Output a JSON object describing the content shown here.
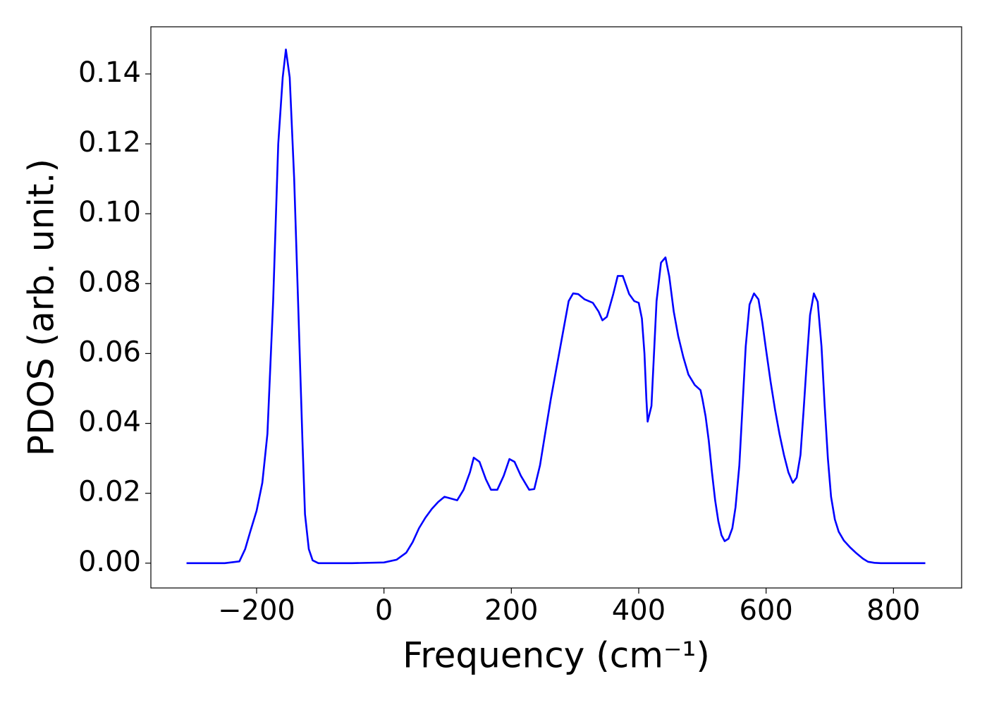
{
  "chart_data": {
    "type": "line",
    "xlabel": "Frequency (cm⁻¹)",
    "ylabel": "PDOS (arb. unit.)",
    "xlim": [
      -366,
      907
    ],
    "ylim": [
      -0.0071,
      0.1535
    ],
    "xticks": [
      {
        "value": -200,
        "label": "−200"
      },
      0,
      200,
      400,
      600,
      800
    ],
    "yticks": [
      {
        "value": 0,
        "label": "0.00"
      },
      {
        "value": 0.02,
        "label": "0.02"
      },
      {
        "value": 0.04,
        "label": "0.04"
      },
      {
        "value": 0.06,
        "label": "0.06"
      },
      {
        "value": 0.08,
        "label": "0.08"
      },
      {
        "value": 0.1,
        "label": "0.10"
      },
      {
        "value": 0.12,
        "label": "0.12"
      },
      {
        "value": 0.14,
        "label": "0.14"
      }
    ],
    "grid": false,
    "series": [
      {
        "color": "#0000ff",
        "x": [
          -310,
          -250,
          -227,
          -218,
          -210,
          -200,
          -191,
          -183,
          -174,
          -166,
          -159,
          -154,
          -148,
          -141,
          -134,
          -128,
          -124,
          -118,
          -112,
          -103,
          -50,
          0,
          20,
          35,
          45,
          55,
          65,
          75,
          85,
          95,
          105,
          115,
          125,
          135,
          141,
          150,
          160,
          168,
          178,
          188,
          197,
          205,
          215,
          228,
          236,
          245,
          253,
          262,
          272,
          283,
          290,
          297,
          305,
          315,
          328,
          337,
          343,
          350,
          360,
          367,
          375,
          385,
          393,
          400,
          405,
          409,
          412,
          414,
          420,
          428,
          435,
          442,
          448,
          455,
          462,
          470,
          478,
          488,
          497,
          500,
          505,
          510,
          515,
          520,
          525,
          530,
          535,
          541,
          547,
          552,
          558,
          563,
          568,
          574,
          581,
          588,
          594,
          600,
          607,
          614,
          621,
          628,
          635,
          642,
          648,
          654,
          659,
          664,
          669,
          675,
          681,
          687,
          692,
          697,
          702,
          708,
          714,
          722,
          732,
          742,
          752,
          760,
          770,
          780,
          850
        ],
        "values": [
          0,
          0,
          0.0005,
          0.004,
          0.009,
          0.015,
          0.023,
          0.037,
          0.075,
          0.12,
          0.139,
          0.147,
          0.139,
          0.11,
          0.07,
          0.035,
          0.014,
          0.004,
          0.0008,
          0,
          0,
          0.0002,
          0.001,
          0.003,
          0.006,
          0.01,
          0.013,
          0.0155,
          0.0175,
          0.019,
          0.0185,
          0.018,
          0.021,
          0.026,
          0.0302,
          0.029,
          0.024,
          0.021,
          0.021,
          0.025,
          0.0298,
          0.029,
          0.025,
          0.021,
          0.0212,
          0.028,
          0.037,
          0.047,
          0.057,
          0.068,
          0.075,
          0.0772,
          0.077,
          0.0755,
          0.0745,
          0.072,
          0.0695,
          0.0705,
          0.077,
          0.0822,
          0.0822,
          0.077,
          0.075,
          0.0745,
          0.07,
          0.06,
          0.047,
          0.0405,
          0.045,
          0.075,
          0.086,
          0.0875,
          0.082,
          0.072,
          0.065,
          0.059,
          0.054,
          0.051,
          0.0495,
          0.047,
          0.042,
          0.035,
          0.026,
          0.018,
          0.012,
          0.008,
          0.0063,
          0.007,
          0.01,
          0.016,
          0.028,
          0.045,
          0.062,
          0.074,
          0.0772,
          0.0755,
          0.069,
          0.061,
          0.052,
          0.044,
          0.037,
          0.031,
          0.026,
          0.023,
          0.0245,
          0.031,
          0.044,
          0.058,
          0.071,
          0.0772,
          0.0748,
          0.062,
          0.045,
          0.03,
          0.019,
          0.0125,
          0.009,
          0.0065,
          0.0045,
          0.0028,
          0.0013,
          0.0004,
          0.0001,
          0,
          0
        ]
      }
    ]
  }
}
